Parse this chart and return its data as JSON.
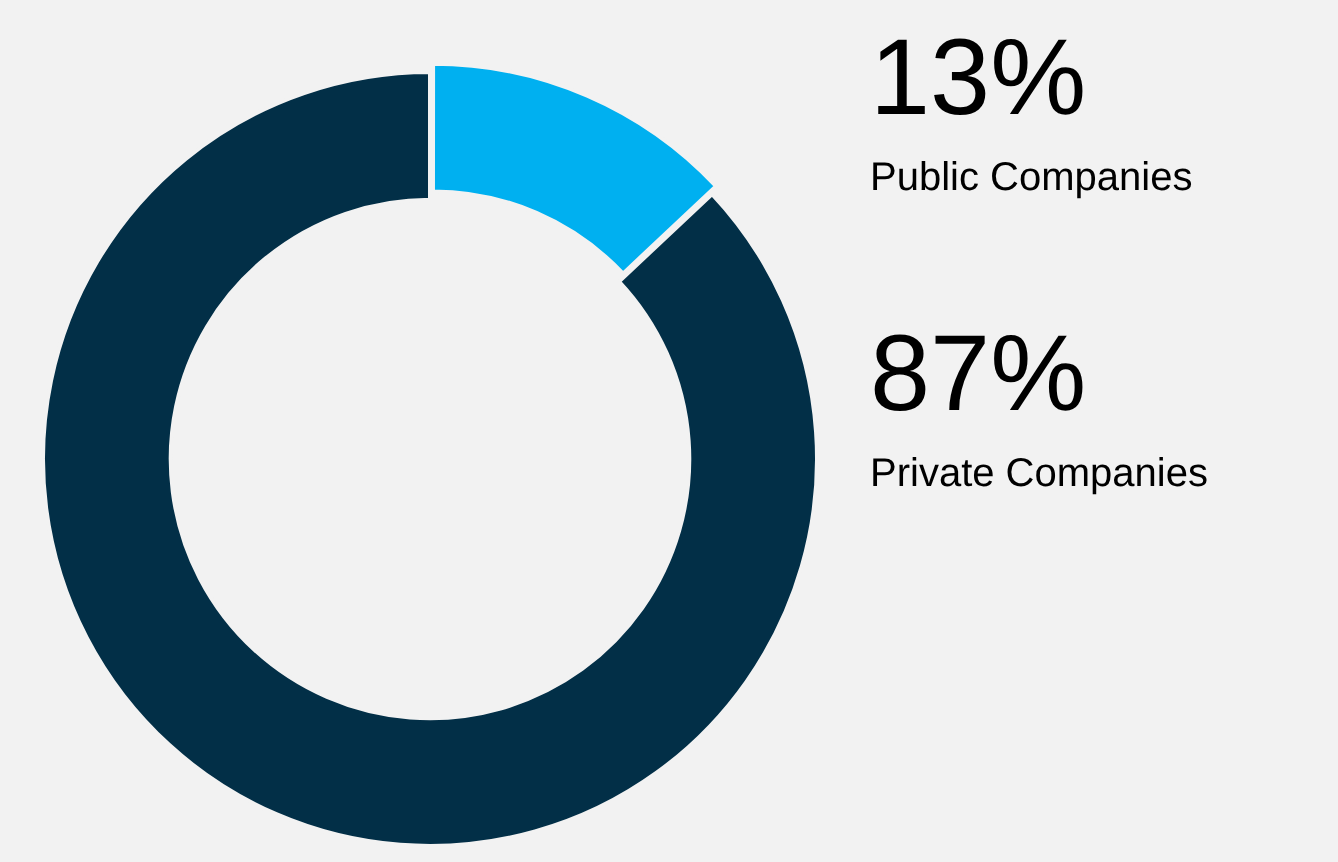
{
  "chart_data": {
    "type": "donut",
    "categories": [
      "Public Companies",
      "Private Companies"
    ],
    "values": [
      13,
      87
    ],
    "colors": [
      "#00b0f0",
      "#022f47"
    ],
    "value_labels": [
      "13%",
      "87%"
    ]
  }
}
